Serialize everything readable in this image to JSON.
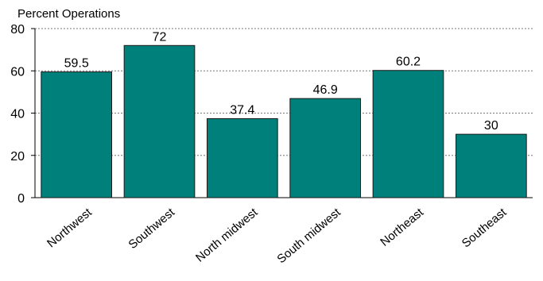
{
  "chart_data": {
    "type": "bar",
    "title": "",
    "ylabel": "Percent Operations",
    "xlabel": "",
    "categories": [
      "Northwest",
      "Southwest",
      "North midwest",
      "South midwest",
      "Northeast",
      "Southeast"
    ],
    "values": [
      59.5,
      72,
      37.4,
      46.9,
      60.2,
      30
    ],
    "data_labels": [
      "59.5",
      "72",
      "37.4",
      "46.9",
      "60.2",
      "30"
    ],
    "ylim": [
      0,
      80
    ],
    "yticks": [
      0,
      20,
      40,
      60,
      80
    ],
    "ytick_labels": [
      "0",
      "20",
      "40",
      "60",
      "80"
    ],
    "grid": "horizontal dotted",
    "bar_color": "#00807a",
    "bar_edge_color": "#1a1a1a"
  }
}
